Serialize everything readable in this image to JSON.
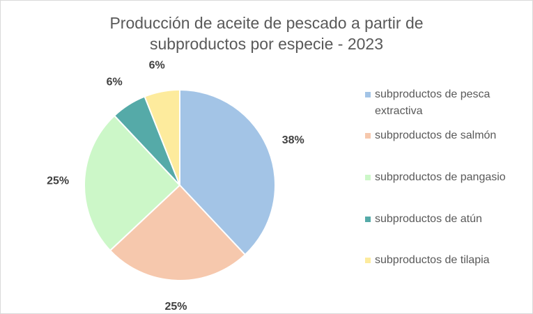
{
  "chart_data": {
    "type": "pie",
    "title_lines": [
      "Producción de aceite de pescado a partir de",
      "subproductos por especie - 2023"
    ],
    "categories": [
      "subproductos de pesca extractiva",
      "subproductos de salmón",
      "subproductos de pangasio",
      "subproductos de atún",
      "subproductos de tilapia"
    ],
    "values": [
      38,
      25,
      25,
      6,
      6
    ],
    "data_labels": [
      "38%",
      "25%",
      "25%",
      "6%",
      "6%"
    ],
    "colors": [
      "#a3c4e6",
      "#f6c8ad",
      "#ccf7c8",
      "#55aaa8",
      "#fdeb9d"
    ],
    "legend_position": "right"
  }
}
